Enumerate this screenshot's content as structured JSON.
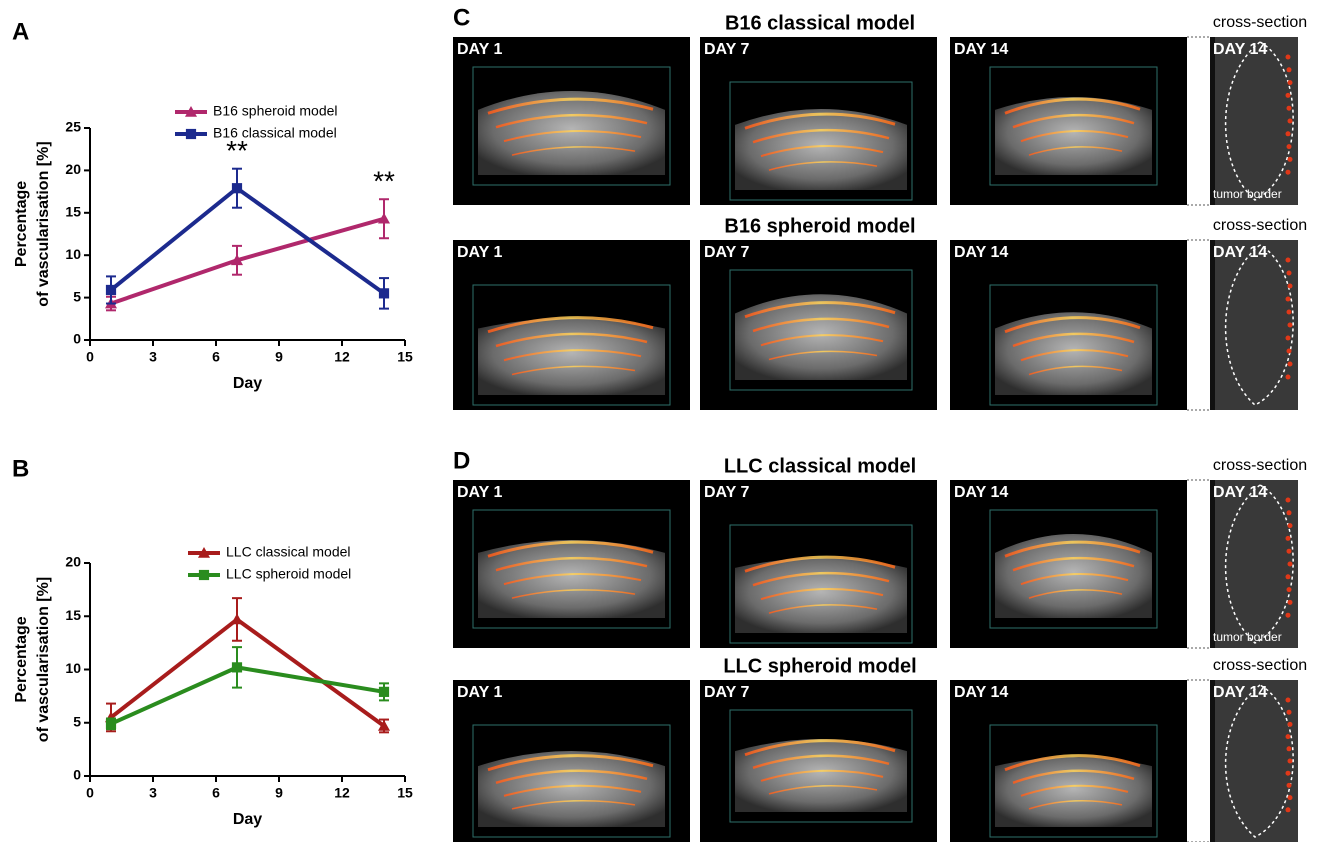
{
  "chart_data": [
    {
      "type": "line",
      "panel_label": "A",
      "xlabel": "Day",
      "ylabel": [
        "Percentage",
        "of vascularisation [%]"
      ],
      "x": [
        1,
        7,
        14
      ],
      "xlim": [
        0,
        15
      ],
      "xticks": [
        0,
        3,
        6,
        9,
        12,
        15
      ],
      "ylim": [
        0,
        25
      ],
      "yticks": [
        0,
        5,
        10,
        15,
        20,
        25
      ],
      "series": [
        {
          "name": "B16 spheroid  model",
          "color": "#b0286c",
          "marker": "triangle",
          "values": [
            4.3,
            9.4,
            14.3
          ],
          "errors": [
            0.8,
            1.7,
            2.3
          ]
        },
        {
          "name": "B16 classical  model",
          "color": "#1c2a8e",
          "marker": "square",
          "values": [
            5.9,
            17.9,
            5.5
          ],
          "errors": [
            1.6,
            2.3,
            1.8
          ]
        }
      ],
      "annotations": [
        {
          "x": 7,
          "text": "**"
        },
        {
          "x": 14,
          "text": "**"
        }
      ]
    },
    {
      "type": "line",
      "panel_label": "B",
      "xlabel": "Day",
      "ylabel": [
        "Percentage",
        "of vascularisation [%]"
      ],
      "x": [
        1,
        7,
        14
      ],
      "xlim": [
        0,
        15
      ],
      "xticks": [
        0,
        3,
        6,
        9,
        12,
        15
      ],
      "ylim": [
        0,
        20
      ],
      "yticks": [
        0,
        5,
        10,
        15,
        20
      ],
      "series": [
        {
          "name": "LLC classical  model",
          "color": "#a81c1c",
          "marker": "triangle",
          "values": [
            5.5,
            14.7,
            4.7
          ],
          "errors": [
            1.3,
            2.0,
            0.6
          ]
        },
        {
          "name": "LLC spheroid  model",
          "color": "#2a8c1e",
          "marker": "square",
          "values": [
            4.9,
            10.2,
            7.9
          ],
          "errors": [
            0.5,
            1.9,
            0.8
          ]
        }
      ]
    }
  ],
  "image_panels": [
    {
      "label": "C",
      "rows": [
        {
          "title": "B16 classical model",
          "days": [
            "DAY 1",
            "DAY 7",
            "DAY 14"
          ],
          "cross_section": "cross-section",
          "cross_day": "DAY 14",
          "tumor_border": "tumor border"
        },
        {
          "title": "B16 spheroid model",
          "days": [
            "DAY 1",
            "DAY 7",
            "DAY 14"
          ],
          "cross_section": "cross-section",
          "cross_day": "DAY 14"
        }
      ]
    },
    {
      "label": "D",
      "rows": [
        {
          "title": "LLC classical model",
          "days": [
            "DAY 1",
            "DAY 7",
            "DAY 14"
          ],
          "cross_section": "cross-section",
          "cross_day": "DAY 14",
          "tumor_border": "tumor border"
        },
        {
          "title": "LLC spheroid model",
          "days": [
            "DAY 1",
            "DAY 7",
            "DAY 14"
          ],
          "cross_section": "cross-section",
          "cross_day": "DAY 14"
        }
      ]
    }
  ]
}
